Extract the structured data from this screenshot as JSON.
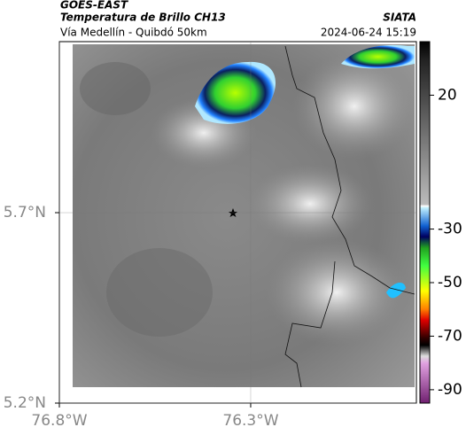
{
  "header": {
    "source": "GOES-EAST",
    "title": "Temperatura de Brillo CH13",
    "subtitle": "Vía Medellín - Quibdó 50km",
    "agency": "SIATA",
    "datetime": "2024-06-24 15:19"
  },
  "map": {
    "xlim": [
      -76.8,
      -75.867
    ],
    "ylim": [
      5.2,
      6.149
    ],
    "xticks": [
      {
        "value": -76.8,
        "label": "76.8°W"
      },
      {
        "value": -76.3,
        "label": "76.3°W"
      }
    ],
    "yticks": [
      {
        "value": 5.7,
        "label": "5.7°N"
      },
      {
        "value": 5.2,
        "label": "5.2°N"
      }
    ],
    "grid": true
  },
  "colorbar": {
    "lim": [
      40,
      -95
    ],
    "ticks": [
      20,
      -30,
      -50,
      -70,
      -90
    ]
  }
}
